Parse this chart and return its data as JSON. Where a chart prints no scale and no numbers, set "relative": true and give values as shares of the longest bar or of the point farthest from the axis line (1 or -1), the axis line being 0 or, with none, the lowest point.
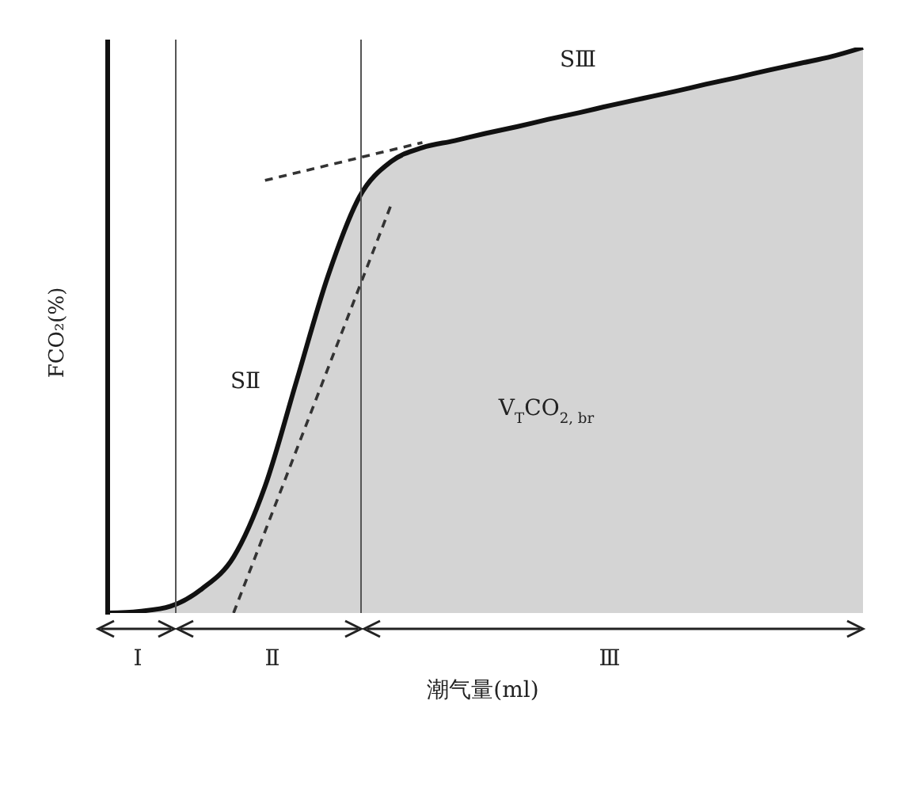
{
  "chart_data": {
    "type": "area",
    "relative": true,
    "ylabel": "FCO₂(%)",
    "xlabel": "潮气量(ml)",
    "categories": [
      null,
      null,
      null,
      null,
      null,
      null,
      null,
      null,
      null,
      null,
      null,
      null,
      null,
      null,
      null,
      null,
      null,
      null,
      null,
      null,
      null,
      null,
      null,
      null,
      null
    ],
    "series": [
      {
        "color": "#d4d4d4",
        "values": [
          0,
          0.003,
          0.012,
          0.043,
          0.099,
          0.224,
          0.41,
          0.596,
          0.736,
          0.798,
          0.823,
          0.835,
          0.848,
          0.86,
          0.873,
          0.885,
          0.898,
          0.91,
          0.922,
          0.935,
          0.947,
          0.96,
          0.972,
          0.984,
          1
        ]
      },
      {
        "type": "line",
        "color": "#333333",
        "line_style": "dashed",
        "marker": "none",
        "values": [
          null,
          null,
          null,
          null,
          0,
          null,
          null,
          null,
          null,
          0.721,
          null,
          null,
          null,
          null,
          null,
          null,
          null,
          null,
          null,
          null,
          null,
          null,
          null,
          null,
          null
        ]
      },
      {
        "type": "line",
        "color": "#333333",
        "line_style": "dashed",
        "marker": "none",
        "values": [
          null,
          null,
          null,
          null,
          null,
          0.765,
          null,
          null,
          null,
          null,
          0.832,
          null,
          null,
          null,
          null,
          null,
          null,
          null,
          null,
          null,
          null,
          null,
          null,
          null,
          null
        ]
      }
    ],
    "annotations": [
      "SⅢ",
      "SⅡ",
      "V$_{T}$CO$_{2, br}$",
      "Ⅰ",
      "Ⅱ",
      "Ⅲ"
    ]
  }
}
